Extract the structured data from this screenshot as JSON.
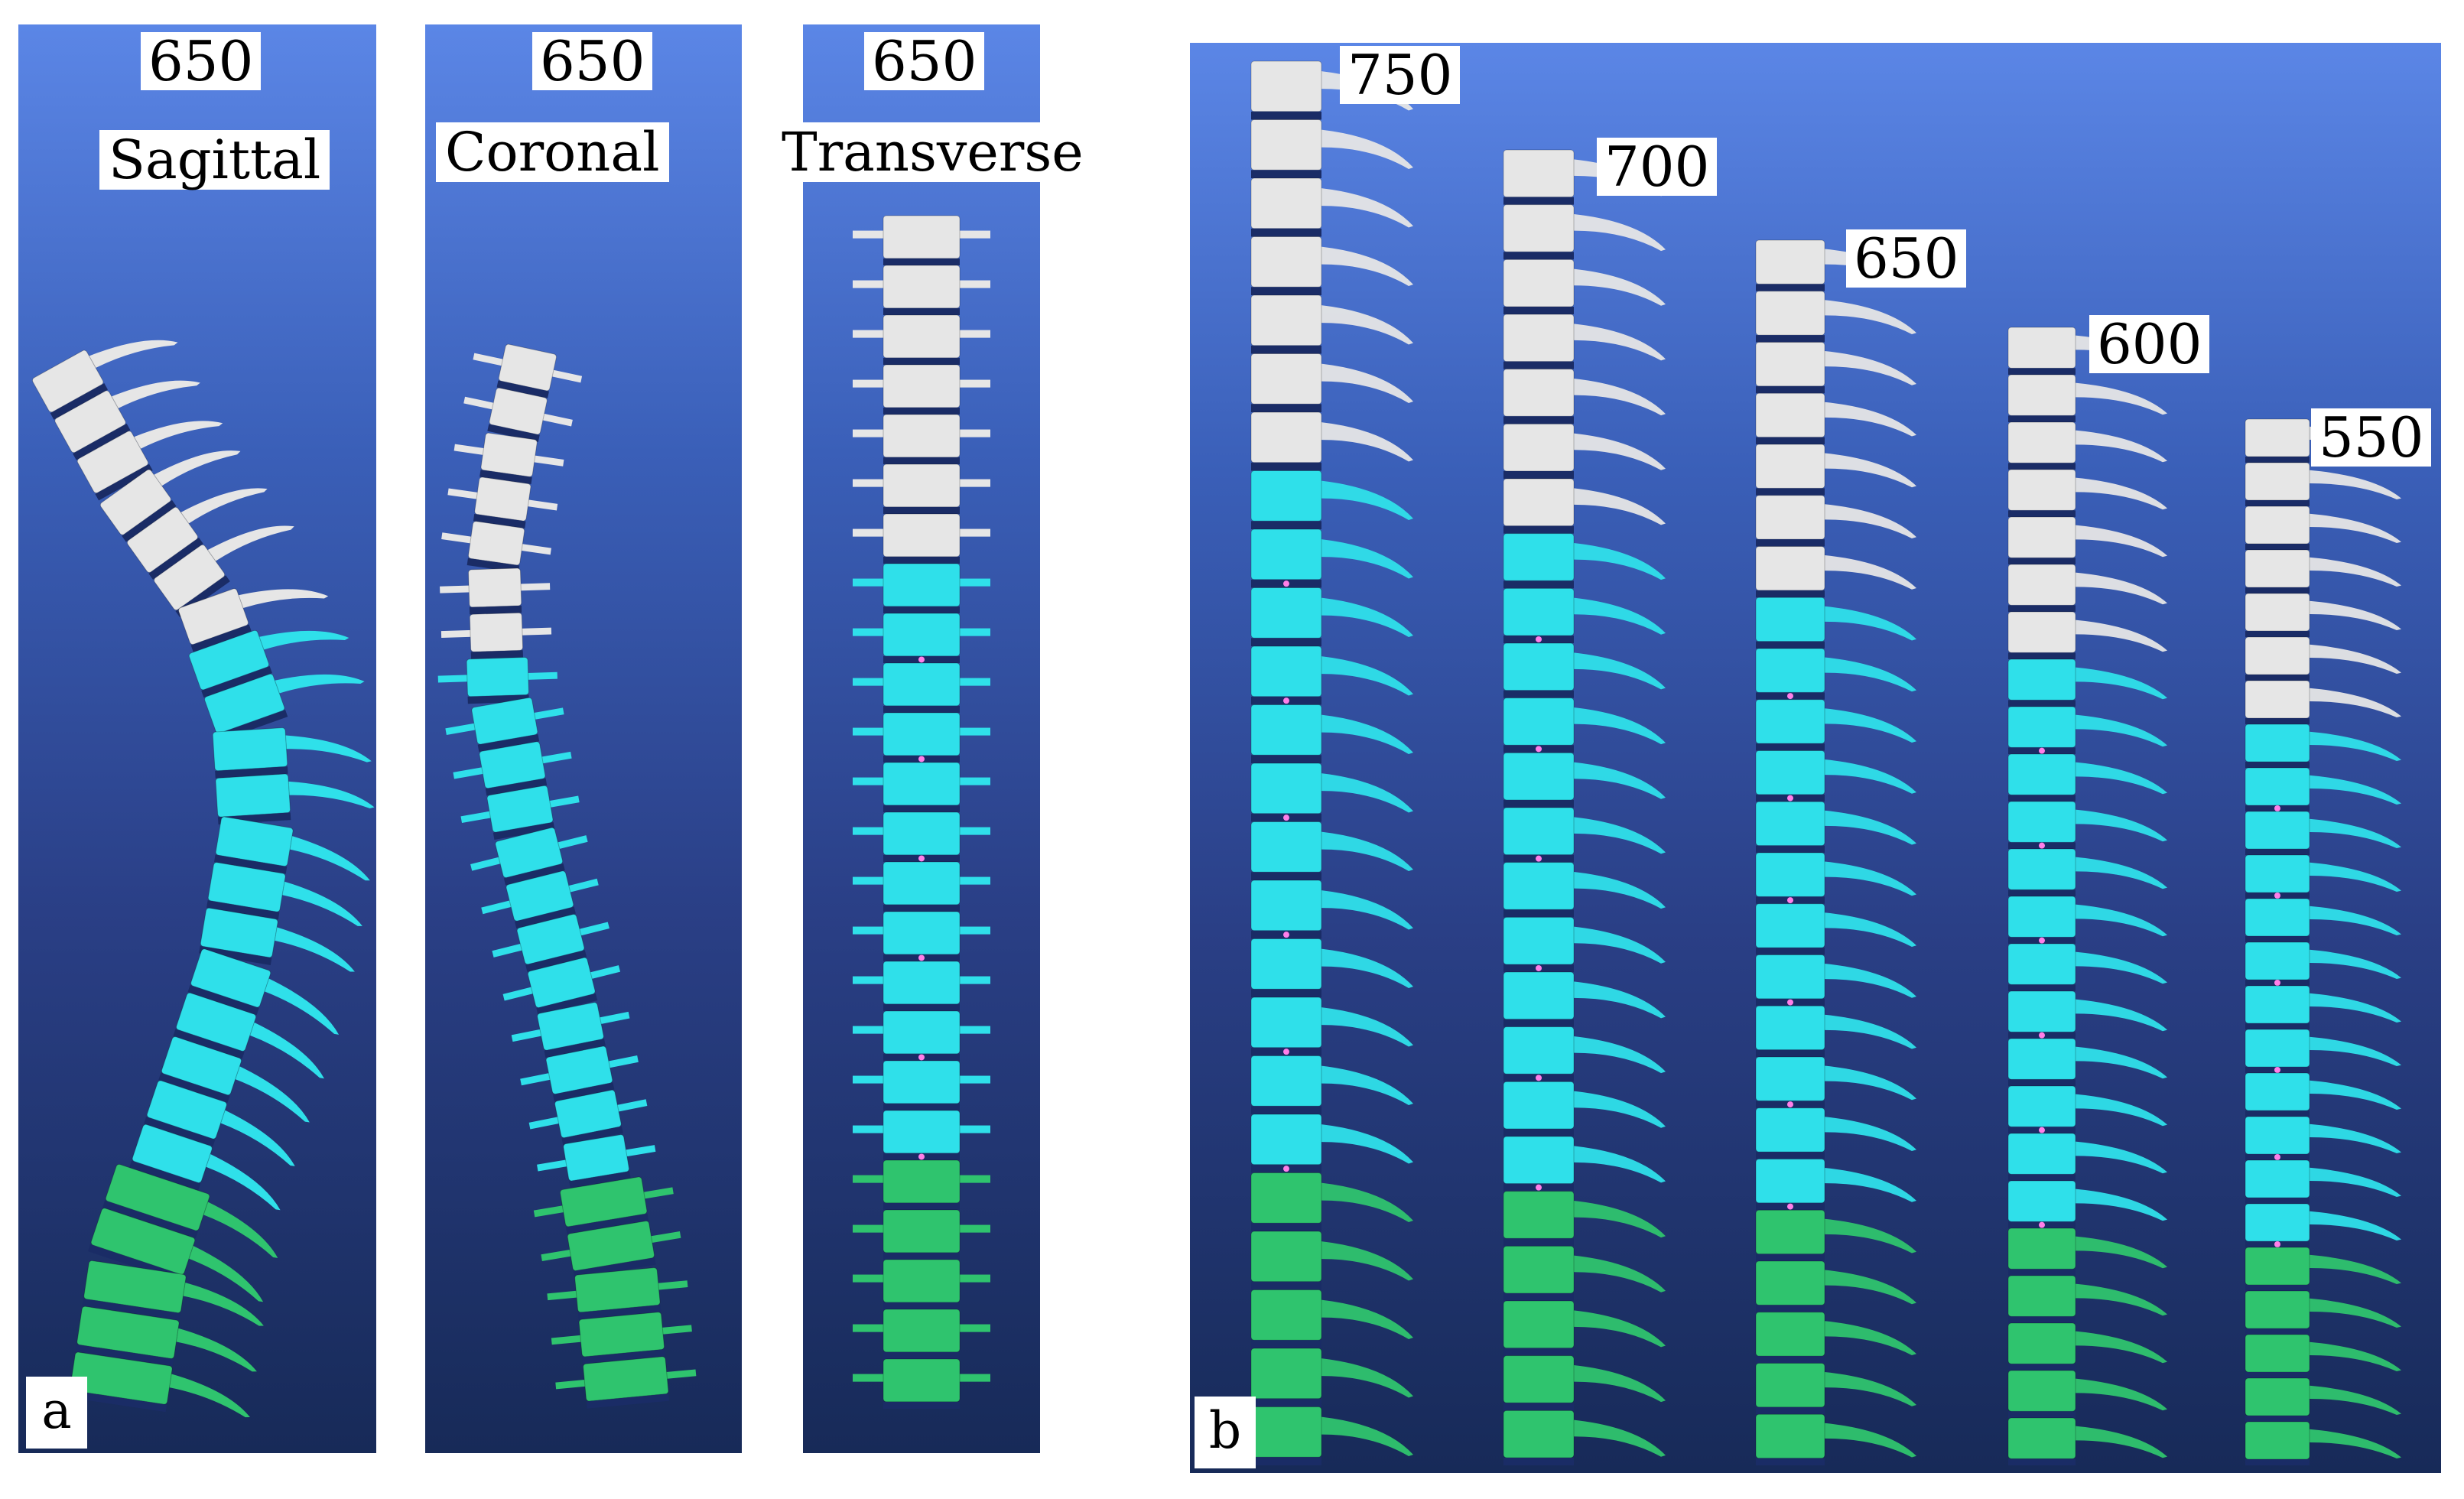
{
  "panel_a": {
    "corner_label": "a",
    "views": [
      {
        "value": "650",
        "plane": "Sagittal"
      },
      {
        "value": "650",
        "plane": "Coronal"
      },
      {
        "value": "650",
        "plane": "Transverse"
      }
    ]
  },
  "panel_b": {
    "corner_label": "b",
    "models": [
      {
        "value": "750"
      },
      {
        "value": "700"
      },
      {
        "value": "650"
      },
      {
        "value": "600"
      },
      {
        "value": "550"
      }
    ]
  },
  "colors": {
    "cervical": "#e6e6e6",
    "thoracic": "#2fe0ea",
    "lumbar": "#2fc46e",
    "disc": "#1a2c66",
    "marker": "#ff7fe8"
  }
}
